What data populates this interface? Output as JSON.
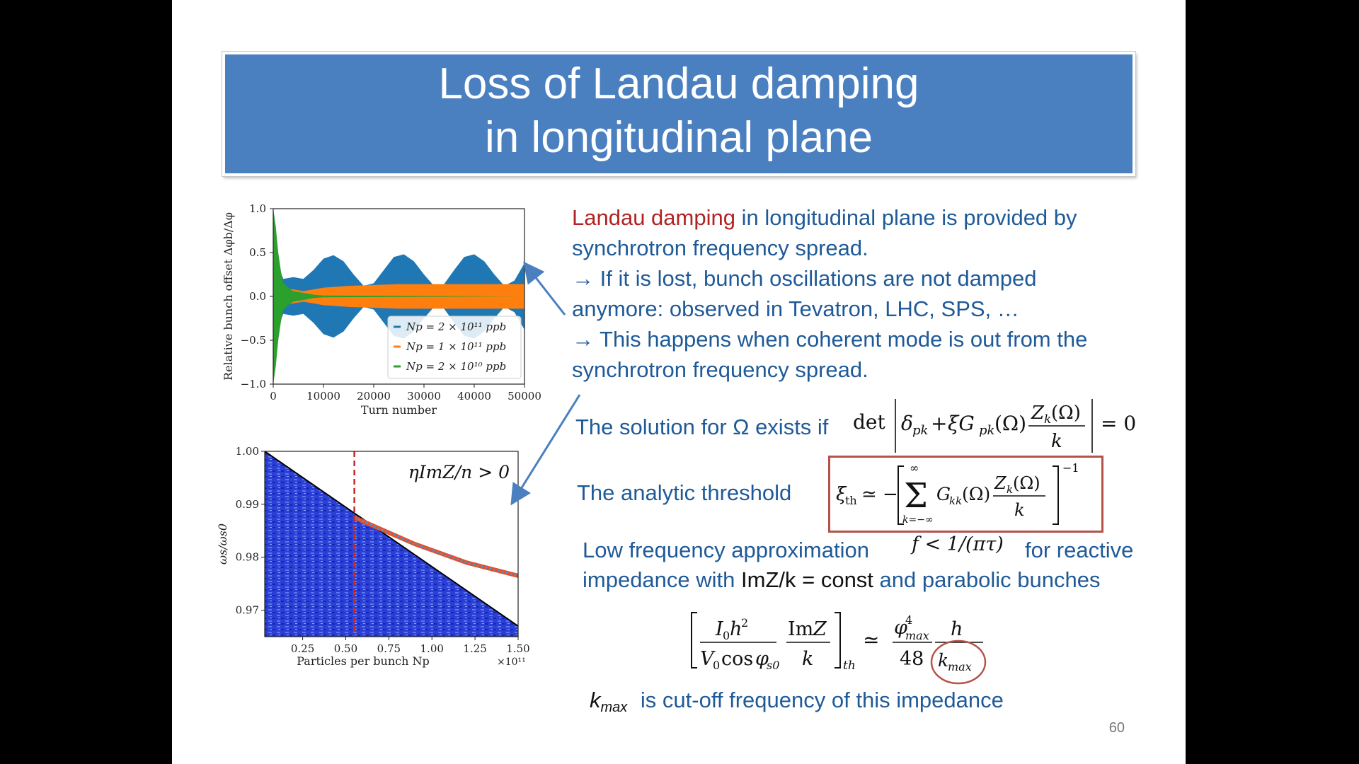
{
  "slide": {
    "title_line1": "Loss of Landau damping",
    "title_line2": "in longitudinal plane",
    "page_number": "60"
  },
  "text": {
    "p1_red": "Landau damping",
    "p1_rest": " in longitudinal plane is provided by",
    "p1_line2": "synchrotron frequency spread.",
    "p2_line1": "→ If it is lost, bunch oscillations are not damped",
    "p2_line2": "anymore: observed in Tevatron, LHC, SPS, …",
    "p3_line1": "→ This happens when coherent mode is out from the",
    "p3_line2": "synchrotron frequency spread.",
    "solution_prefix": "The solution for Ω exists if",
    "analytic_label": "The analytic threshold",
    "lowfreq_label": "Low frequency approximation",
    "lowfreq_suffix": "for reactive",
    "impedance_with": "impedance with ",
    "imz_const": "ImZ/k = const",
    "parabolic": " and parabolic bunches",
    "kmax_symbol": "k",
    "kmax_sub": "max",
    "kmax_desc": "is cut-off frequency of this impedance"
  },
  "formulas": {
    "det_condition": "det |δpk + ξGpk(Ω) Zk(Ω)/k| = 0",
    "threshold": "ξth ≃ −[Σ Gkk(Ω) Zk(Ω)/k]^−1",
    "lowfreq_condition": "f < 1/(πτ)",
    "threshold_approx": "[I0h²/(V0 cosφs0) ImZ/k]th ≃ φ⁴max/48 · h/kmax"
  },
  "colors": {
    "title_bg": "#4a7fc0",
    "text_blue": "#1f5a98",
    "accent_red": "#b22222",
    "series_blue": "#1f77b4",
    "series_orange": "#ff7f0e",
    "series_green": "#2ca02c"
  },
  "chart_data": [
    {
      "type": "area",
      "xlabel": "Turn number",
      "ylabel": "Relative bunch offset Δφb/Δφ",
      "xlim": [
        0,
        50000
      ],
      "ylim": [
        -1.0,
        1.0
      ],
      "xticks": [
        "0",
        "10000",
        "20000",
        "30000",
        "40000",
        "50000"
      ],
      "yticks": [
        "−1.0",
        "−0.5",
        "0.0",
        "0.5",
        "1.0"
      ],
      "legend_position": "lower-right",
      "series": [
        {
          "name": "Np = 2 × 10¹¹ ppb",
          "color": "#1f77b4",
          "x": [
            0,
            1000,
            2000,
            4000,
            6000,
            8000,
            10000,
            12000,
            14000,
            16000,
            18000,
            20000,
            22000,
            24000,
            26000,
            28000,
            30000,
            32000,
            34000,
            36000,
            38000,
            40000,
            42000,
            44000,
            46000,
            48000,
            50000
          ],
          "envelope": [
            1.0,
            0.35,
            0.2,
            0.22,
            0.2,
            0.3,
            0.43,
            0.47,
            0.4,
            0.25,
            0.12,
            0.15,
            0.3,
            0.45,
            0.48,
            0.4,
            0.25,
            0.12,
            0.14,
            0.3,
            0.45,
            0.48,
            0.4,
            0.25,
            0.12,
            0.18,
            0.38
          ]
        },
        {
          "name": "Np = 1 × 10¹¹ ppb",
          "color": "#ff7f0e",
          "x": [
            0,
            1000,
            2000,
            4000,
            6000,
            8000,
            10000,
            15000,
            20000,
            25000,
            30000,
            35000,
            40000,
            45000,
            50000
          ],
          "envelope": [
            1.0,
            0.2,
            0.1,
            0.08,
            0.06,
            0.08,
            0.1,
            0.12,
            0.13,
            0.14,
            0.14,
            0.14,
            0.14,
            0.14,
            0.14
          ]
        },
        {
          "name": "Np = 2 × 10¹⁰ ppb",
          "color": "#2ca02c",
          "x": [
            0,
            500,
            1000,
            1500,
            2000,
            3000,
            4000,
            6000,
            8000,
            10000,
            50000
          ],
          "envelope": [
            1.0,
            0.8,
            0.5,
            0.3,
            0.15,
            0.1,
            0.06,
            0.04,
            0.02,
            0.01,
            0.0
          ]
        }
      ]
    },
    {
      "type": "heatmap",
      "xlabel": "Particles per bunch Np",
      "x_multiplier": "×10¹¹",
      "ylabel": "ωs/ωs0",
      "annotation": "ηImZ/n > 0",
      "xlim": [
        0.03,
        1.5
      ],
      "ylim": [
        0.965,
        1.0
      ],
      "xticks": [
        "0.25",
        "0.50",
        "0.75",
        "1.00",
        "1.25",
        "1.50"
      ],
      "yticks": [
        "0.97",
        "0.98",
        "0.99",
        "1.00"
      ],
      "threshold_x": 0.55,
      "incoherent_edge": {
        "x": [
          0.03,
          1.5
        ],
        "y": [
          1.0,
          0.967
        ]
      },
      "coherent_mode": {
        "x": [
          0.55,
          0.9,
          1.2,
          1.5
        ],
        "y": [
          0.9875,
          0.9825,
          0.979,
          0.9765
        ]
      }
    }
  ]
}
